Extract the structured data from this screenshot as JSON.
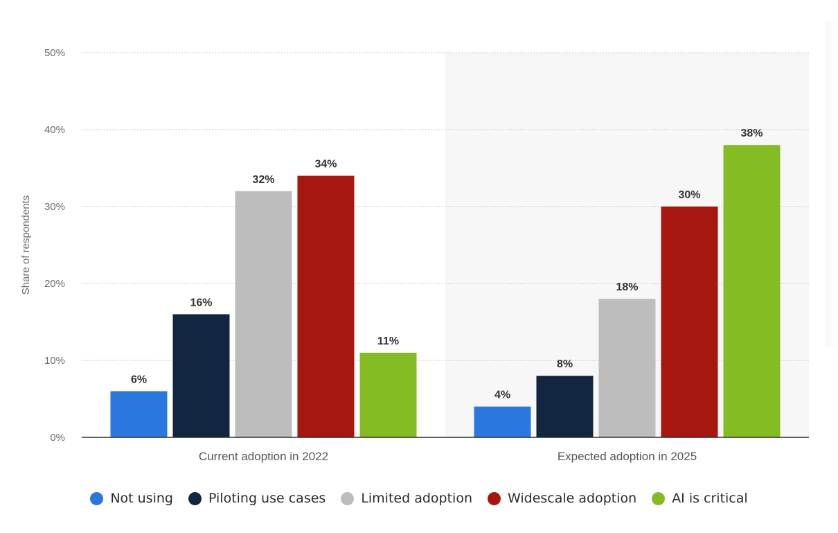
{
  "chart_data": {
    "type": "bar",
    "title": "",
    "xlabel": "",
    "ylabel": "Share of respondents",
    "ylim": [
      0,
      50
    ],
    "yticks": [
      "0%",
      "10%",
      "20%",
      "30%",
      "40%",
      "50%"
    ],
    "categories": [
      "Current adoption in 2022",
      "Expected adoption in 2025"
    ],
    "series": [
      {
        "name": "Not using",
        "values": [
          6,
          4
        ],
        "labels": [
          "6%",
          "4%"
        ]
      },
      {
        "name": "Piloting use cases",
        "values": [
          16,
          8
        ],
        "labels": [
          "16%",
          "8%"
        ]
      },
      {
        "name": "Limited adoption",
        "values": [
          32,
          18
        ],
        "labels": [
          "32%",
          "18%"
        ]
      },
      {
        "name": "Widescale adoption",
        "values": [
          34,
          30
        ],
        "labels": [
          "34%",
          "30%"
        ]
      },
      {
        "name": "AI is critical",
        "values": [
          11,
          38
        ],
        "labels": [
          "11%",
          "38%"
        ]
      }
    ],
    "colors": [
      "#2a78dd",
      "#13263f",
      "#bdbdbd",
      "#a6170f",
      "#84bc24"
    ],
    "grid": true,
    "legend_position": "bottom",
    "highlight_panel": "Expected adoption in 2025"
  }
}
